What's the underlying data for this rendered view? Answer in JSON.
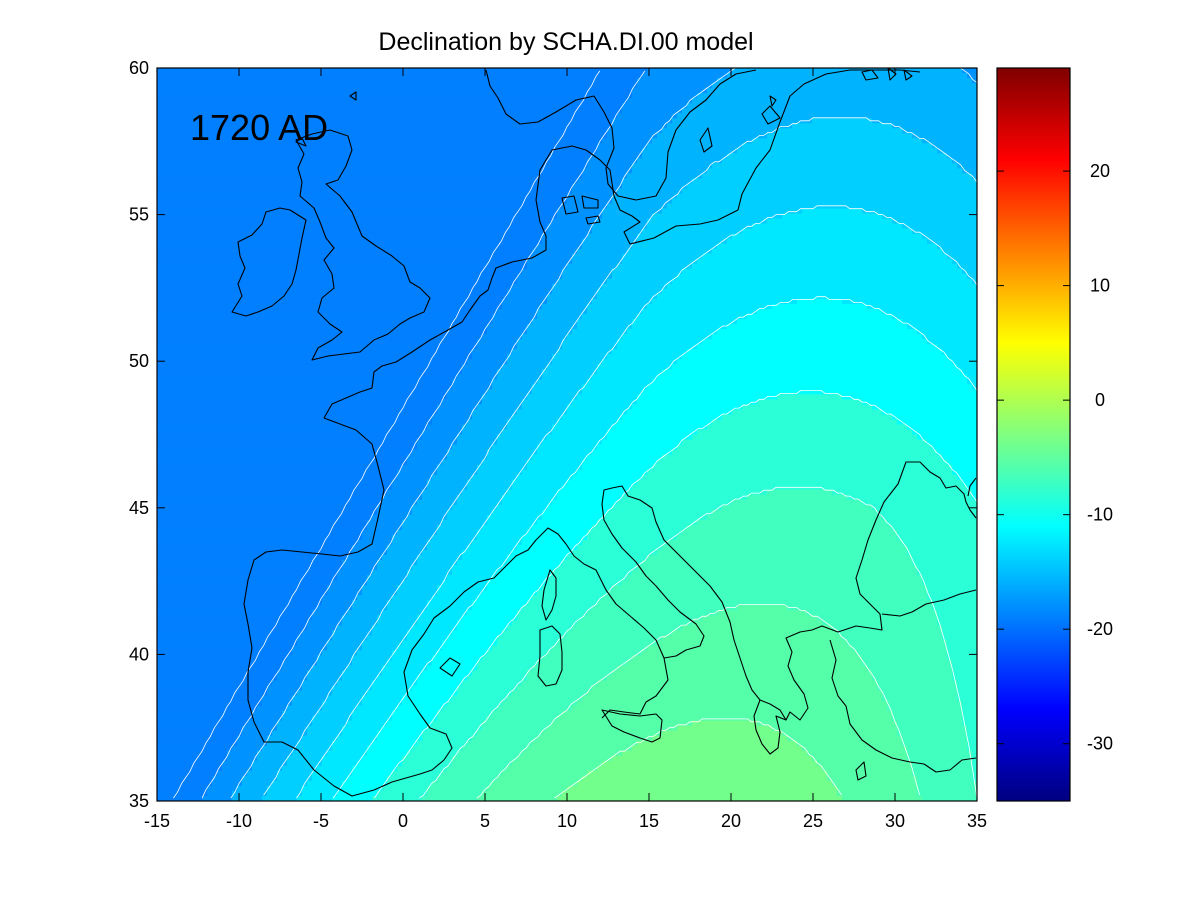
{
  "chart_data": {
    "type": "heatmap",
    "title": "Declination by SCHA.DI.00 model",
    "annotation": "1720 AD",
    "xlim": [
      -15,
      35
    ],
    "ylim": [
      35,
      60
    ],
    "x_ticks": [
      "-15",
      "-10",
      "-5",
      "0",
      "5",
      "10",
      "15",
      "20",
      "25",
      "30",
      "35"
    ],
    "y_ticks": [
      "35",
      "40",
      "45",
      "50",
      "55",
      "60"
    ],
    "colorbar": {
      "range": [
        -35,
        29
      ],
      "ticks": [
        "20",
        "10",
        "0",
        "-10",
        "-20",
        "-30"
      ],
      "colormap": "jet"
    },
    "contour_levels": [
      -20,
      -18,
      -16,
      -14,
      -12,
      -10,
      -8,
      -6,
      -4,
      -2
    ],
    "fill_colors": {
      "-20": "#007fff",
      "-18": "#0093ff",
      "-16": "#00b3ff",
      "-14": "#00cfff",
      "-12": "#00e8ff",
      "-10": "#00ffff",
      "-8": "#2affd8",
      "-6": "#40ffbf",
      "-4": "#55ffaa",
      "-2": "#72ff8c",
      "0": "#aaff55"
    },
    "features": "coastlines"
  }
}
